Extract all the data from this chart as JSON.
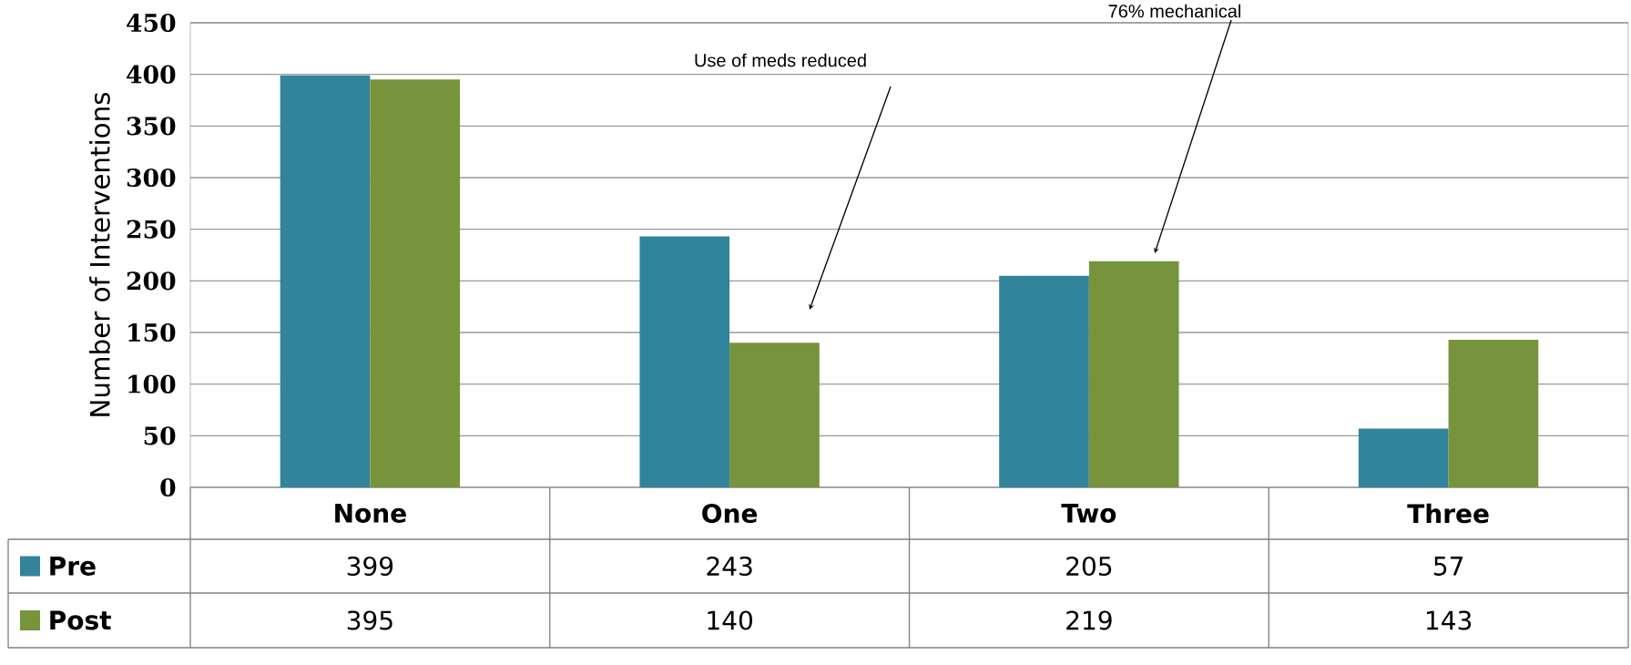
{
  "chart_data": {
    "type": "bar",
    "ylabel": "Number of Interventions",
    "categories": [
      "None",
      "One",
      "Two",
      "Three"
    ],
    "series": [
      {
        "name": "Pre",
        "color": "#31849b",
        "values": [
          399,
          243,
          205,
          57
        ]
      },
      {
        "name": "Post",
        "color": "#77933c",
        "values": [
          395,
          140,
          219,
          143
        ]
      }
    ],
    "ylim": [
      0,
      450
    ],
    "yticks": [
      0,
      50,
      100,
      150,
      200,
      250,
      300,
      350,
      400,
      450
    ],
    "grid": "y",
    "legend": "bottom",
    "data_labels": true,
    "annotations": [
      "Use of meds reduced",
      "76% mechanical"
    ]
  }
}
